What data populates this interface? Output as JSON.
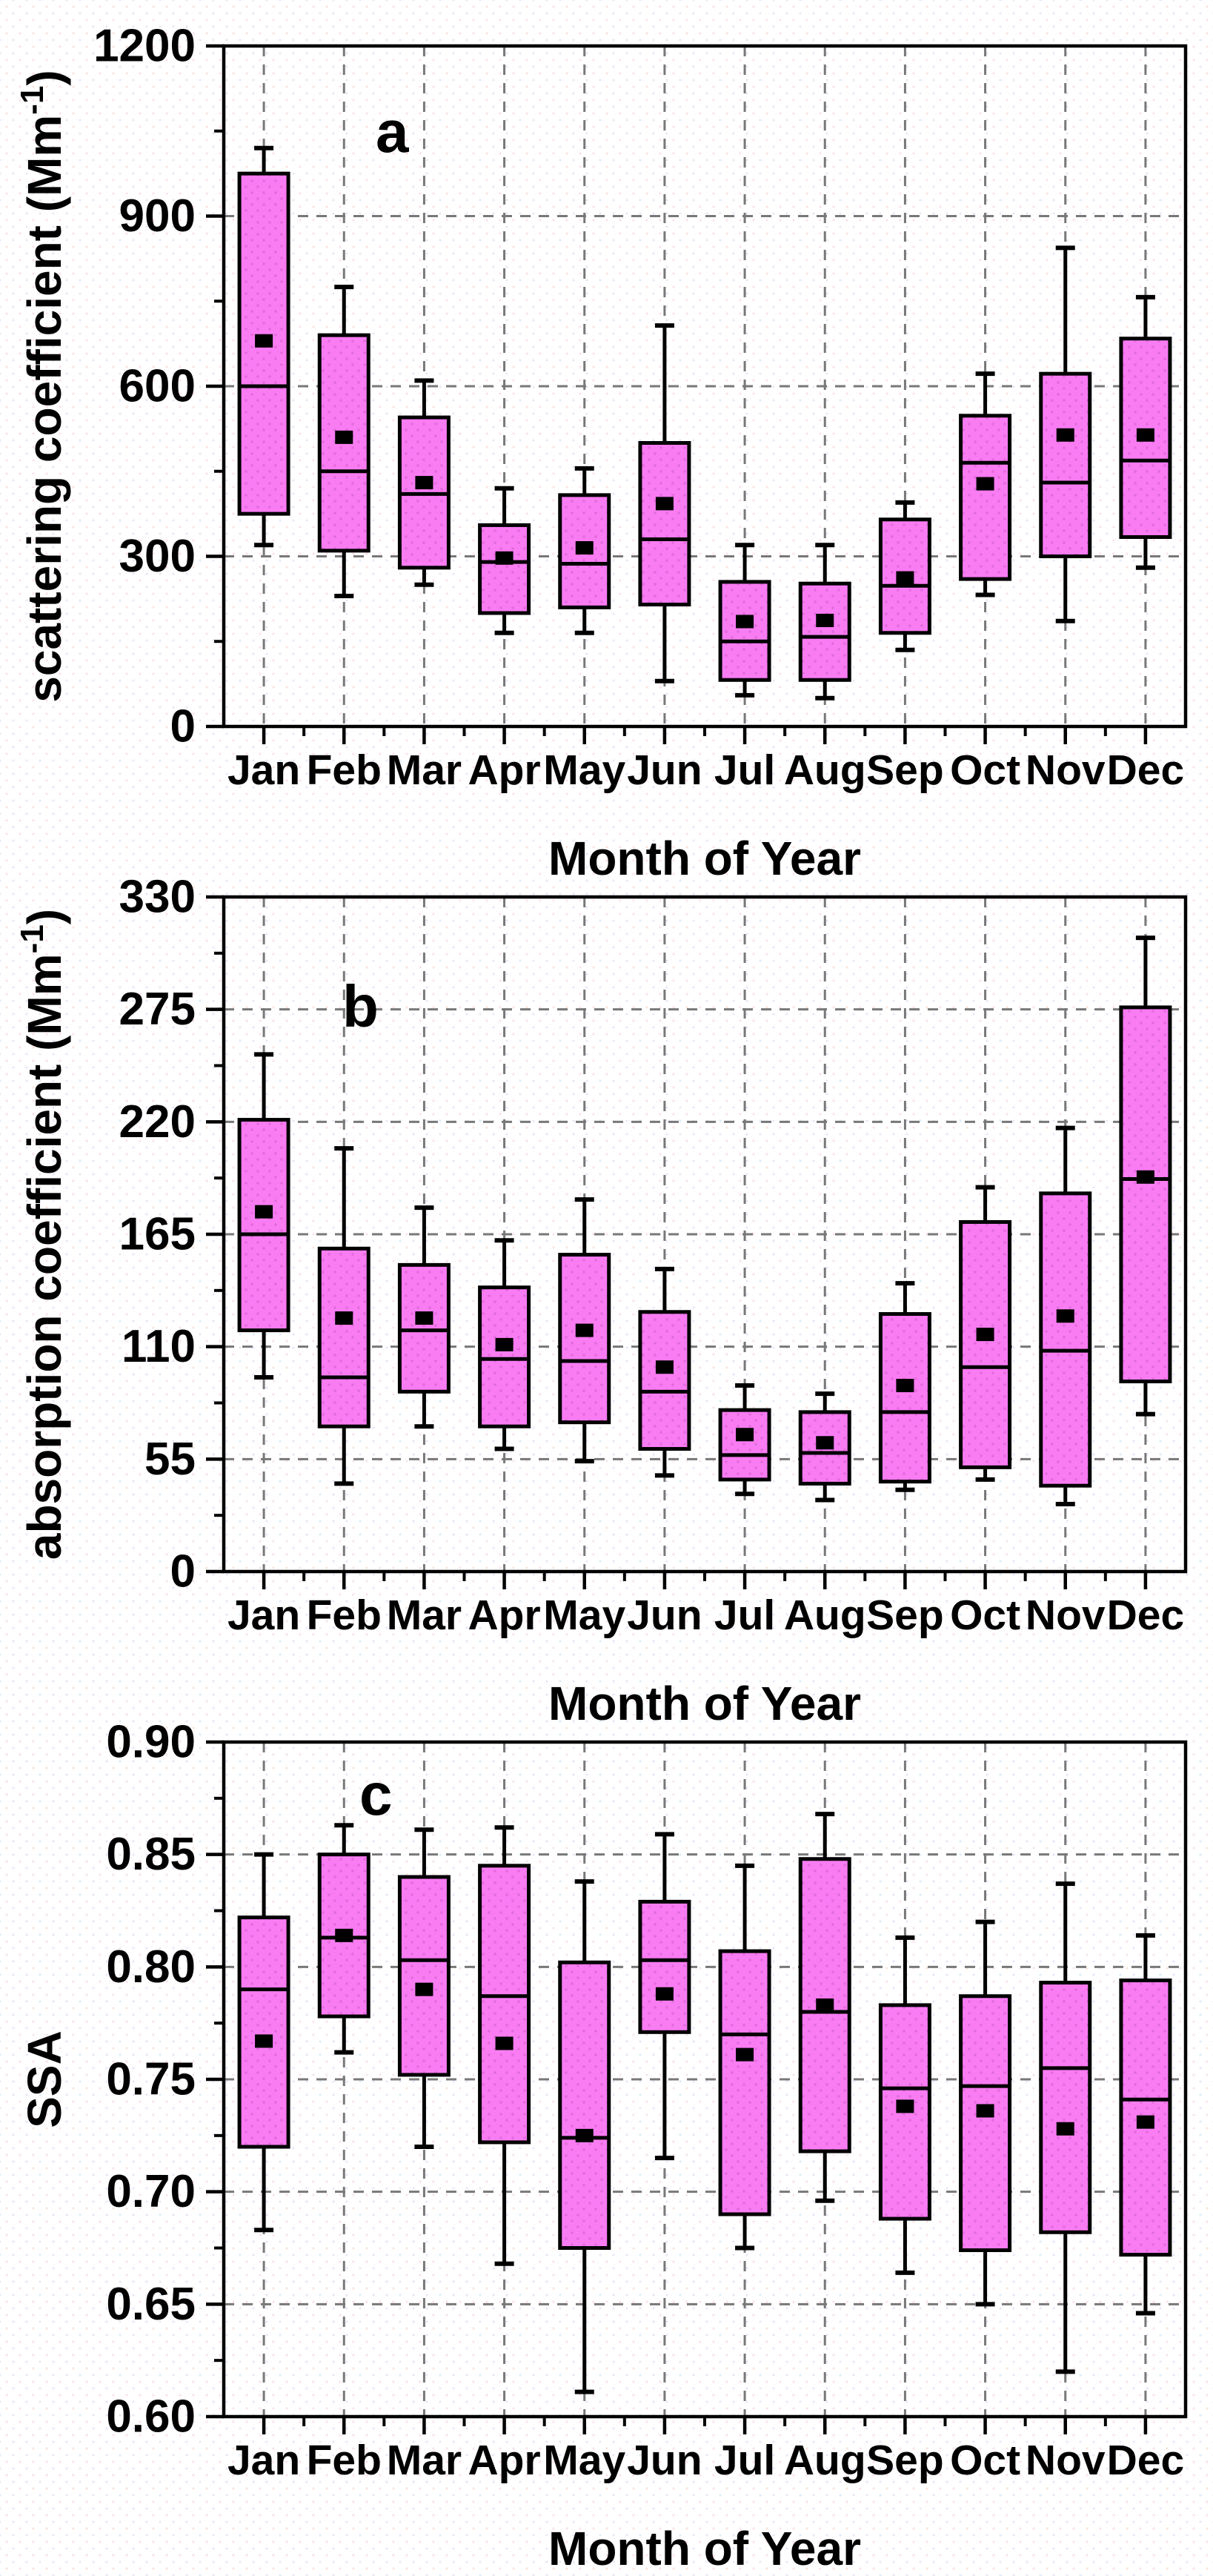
{
  "figure": {
    "background": "#ffffff",
    "box_fill": "#F97CF3",
    "box_dot": "#D35FC9",
    "box_stroke": "#000000",
    "mean_marker_color": "#000000",
    "grid_color": "#787878",
    "axis_color": "#000000",
    "categories": [
      "Jan",
      "Feb",
      "Mar",
      "Apr",
      "May",
      "Jun",
      "Jul",
      "Aug",
      "Sep",
      "Oct",
      "Nov",
      "Dec"
    ]
  },
  "chart_data": [
    {
      "type": "box",
      "panel_letter": "a",
      "ylabel": {
        "main": "scattering coefficient (Mm",
        "sup": "-1",
        "end": ")"
      },
      "xlabel": "Month of Year",
      "ylim": [
        0,
        1200
      ],
      "yticks": [
        0,
        300,
        600,
        900,
        1200
      ],
      "ytick_labels": [
        "0",
        "300",
        "600",
        "900",
        "1200"
      ],
      "yminor_step": 150,
      "grid": true,
      "legend": "none",
      "categories": [
        "Jan",
        "Feb",
        "Mar",
        "Apr",
        "May",
        "Jun",
        "Jul",
        "Aug",
        "Sep",
        "Oct",
        "Nov",
        "Dec"
      ],
      "stats": {
        "low": [
          320,
          230,
          250,
          165,
          165,
          80,
          55,
          50,
          135,
          232,
          186,
          280
        ],
        "q1": [
          375,
          310,
          280,
          200,
          210,
          215,
          82,
          82,
          165,
          260,
          300,
          334
        ],
        "median": [
          600,
          450,
          410,
          290,
          287,
          330,
          150,
          158,
          248,
          465,
          430,
          469
        ],
        "q3": [
          975,
          690,
          545,
          355,
          408,
          500,
          255,
          252,
          365,
          548,
          622,
          684
        ],
        "high": [
          1020,
          775,
          610,
          420,
          455,
          707,
          320,
          320,
          395,
          622,
          844,
          757
        ],
        "mean": [
          680,
          510,
          430,
          297,
          315,
          393,
          185,
          187,
          262,
          428,
          514,
          514
        ]
      }
    },
    {
      "type": "box",
      "panel_letter": "b",
      "ylabel": {
        "main": "absorption coefficient (Mm",
        "sup": "-1",
        "end": ")"
      },
      "xlabel": "Month of Year",
      "ylim": [
        0,
        330
      ],
      "yticks": [
        0,
        55,
        110,
        165,
        220,
        275,
        330
      ],
      "ytick_labels": [
        "0",
        "55",
        "110",
        "165",
        "220",
        "275",
        "330"
      ],
      "yminor_step": 27.5,
      "grid": true,
      "legend": "none",
      "categories": [
        "Jan",
        "Feb",
        "Mar",
        "Apr",
        "May",
        "Jun",
        "Jul",
        "Aug",
        "Sep",
        "Oct",
        "Nov",
        "Dec"
      ],
      "stats": {
        "low": [
          95,
          43,
          71,
          60,
          54,
          47,
          38,
          35,
          40,
          45,
          33,
          77
        ],
        "q1": [
          118,
          71,
          88,
          71,
          73,
          60,
          45,
          43,
          44,
          51,
          42,
          93
        ],
        "median": [
          165,
          95,
          118,
          104,
          103,
          88,
          57,
          58,
          78,
          100,
          108,
          192
        ],
        "q3": [
          221,
          158,
          150,
          139,
          155,
          127,
          79,
          78,
          126,
          171,
          185,
          276
        ],
        "high": [
          253,
          207,
          178,
          162,
          182,
          148,
          91,
          87,
          141,
          188,
          217,
          310
        ],
        "mean": [
          176,
          124,
          124,
          111,
          118,
          100,
          67,
          63,
          91,
          116,
          125,
          193
        ]
      }
    },
    {
      "type": "box",
      "panel_letter": "c",
      "ylabel": {
        "main": "SSA",
        "sup": "",
        "end": ""
      },
      "xlabel": "Month of Year",
      "ylim": [
        0.6,
        0.9
      ],
      "yticks": [
        0.6,
        0.65,
        0.7,
        0.75,
        0.8,
        0.85,
        0.9
      ],
      "ytick_labels": [
        "0.60",
        "0.65",
        "0.70",
        "0.75",
        "0.80",
        "0.85",
        "0.90"
      ],
      "yminor_step": 0.025,
      "grid": true,
      "legend": "none",
      "categories": [
        "Jan",
        "Feb",
        "Mar",
        "Apr",
        "May",
        "Jun",
        "Jul",
        "Aug",
        "Sep",
        "Oct",
        "Nov",
        "Dec"
      ],
      "stats": {
        "low": [
          0.683,
          0.762,
          0.72,
          0.668,
          0.611,
          0.715,
          0.675,
          0.696,
          0.664,
          0.65,
          0.62,
          0.646
        ],
        "q1": [
          0.72,
          0.778,
          0.752,
          0.722,
          0.675,
          0.771,
          0.69,
          0.718,
          0.688,
          0.674,
          0.682,
          0.672
        ],
        "median": [
          0.79,
          0.813,
          0.803,
          0.787,
          0.724,
          0.803,
          0.77,
          0.78,
          0.746,
          0.747,
          0.755,
          0.741
        ],
        "q3": [
          0.822,
          0.85,
          0.84,
          0.845,
          0.802,
          0.829,
          0.807,
          0.848,
          0.783,
          0.787,
          0.793,
          0.794
        ],
        "high": [
          0.85,
          0.863,
          0.861,
          0.862,
          0.838,
          0.859,
          0.845,
          0.868,
          0.813,
          0.82,
          0.837,
          0.814
        ],
        "mean": [
          0.767,
          0.814,
          0.79,
          0.766,
          0.725,
          0.788,
          0.761,
          0.783,
          0.738,
          0.736,
          0.728,
          0.731
        ]
      }
    }
  ]
}
